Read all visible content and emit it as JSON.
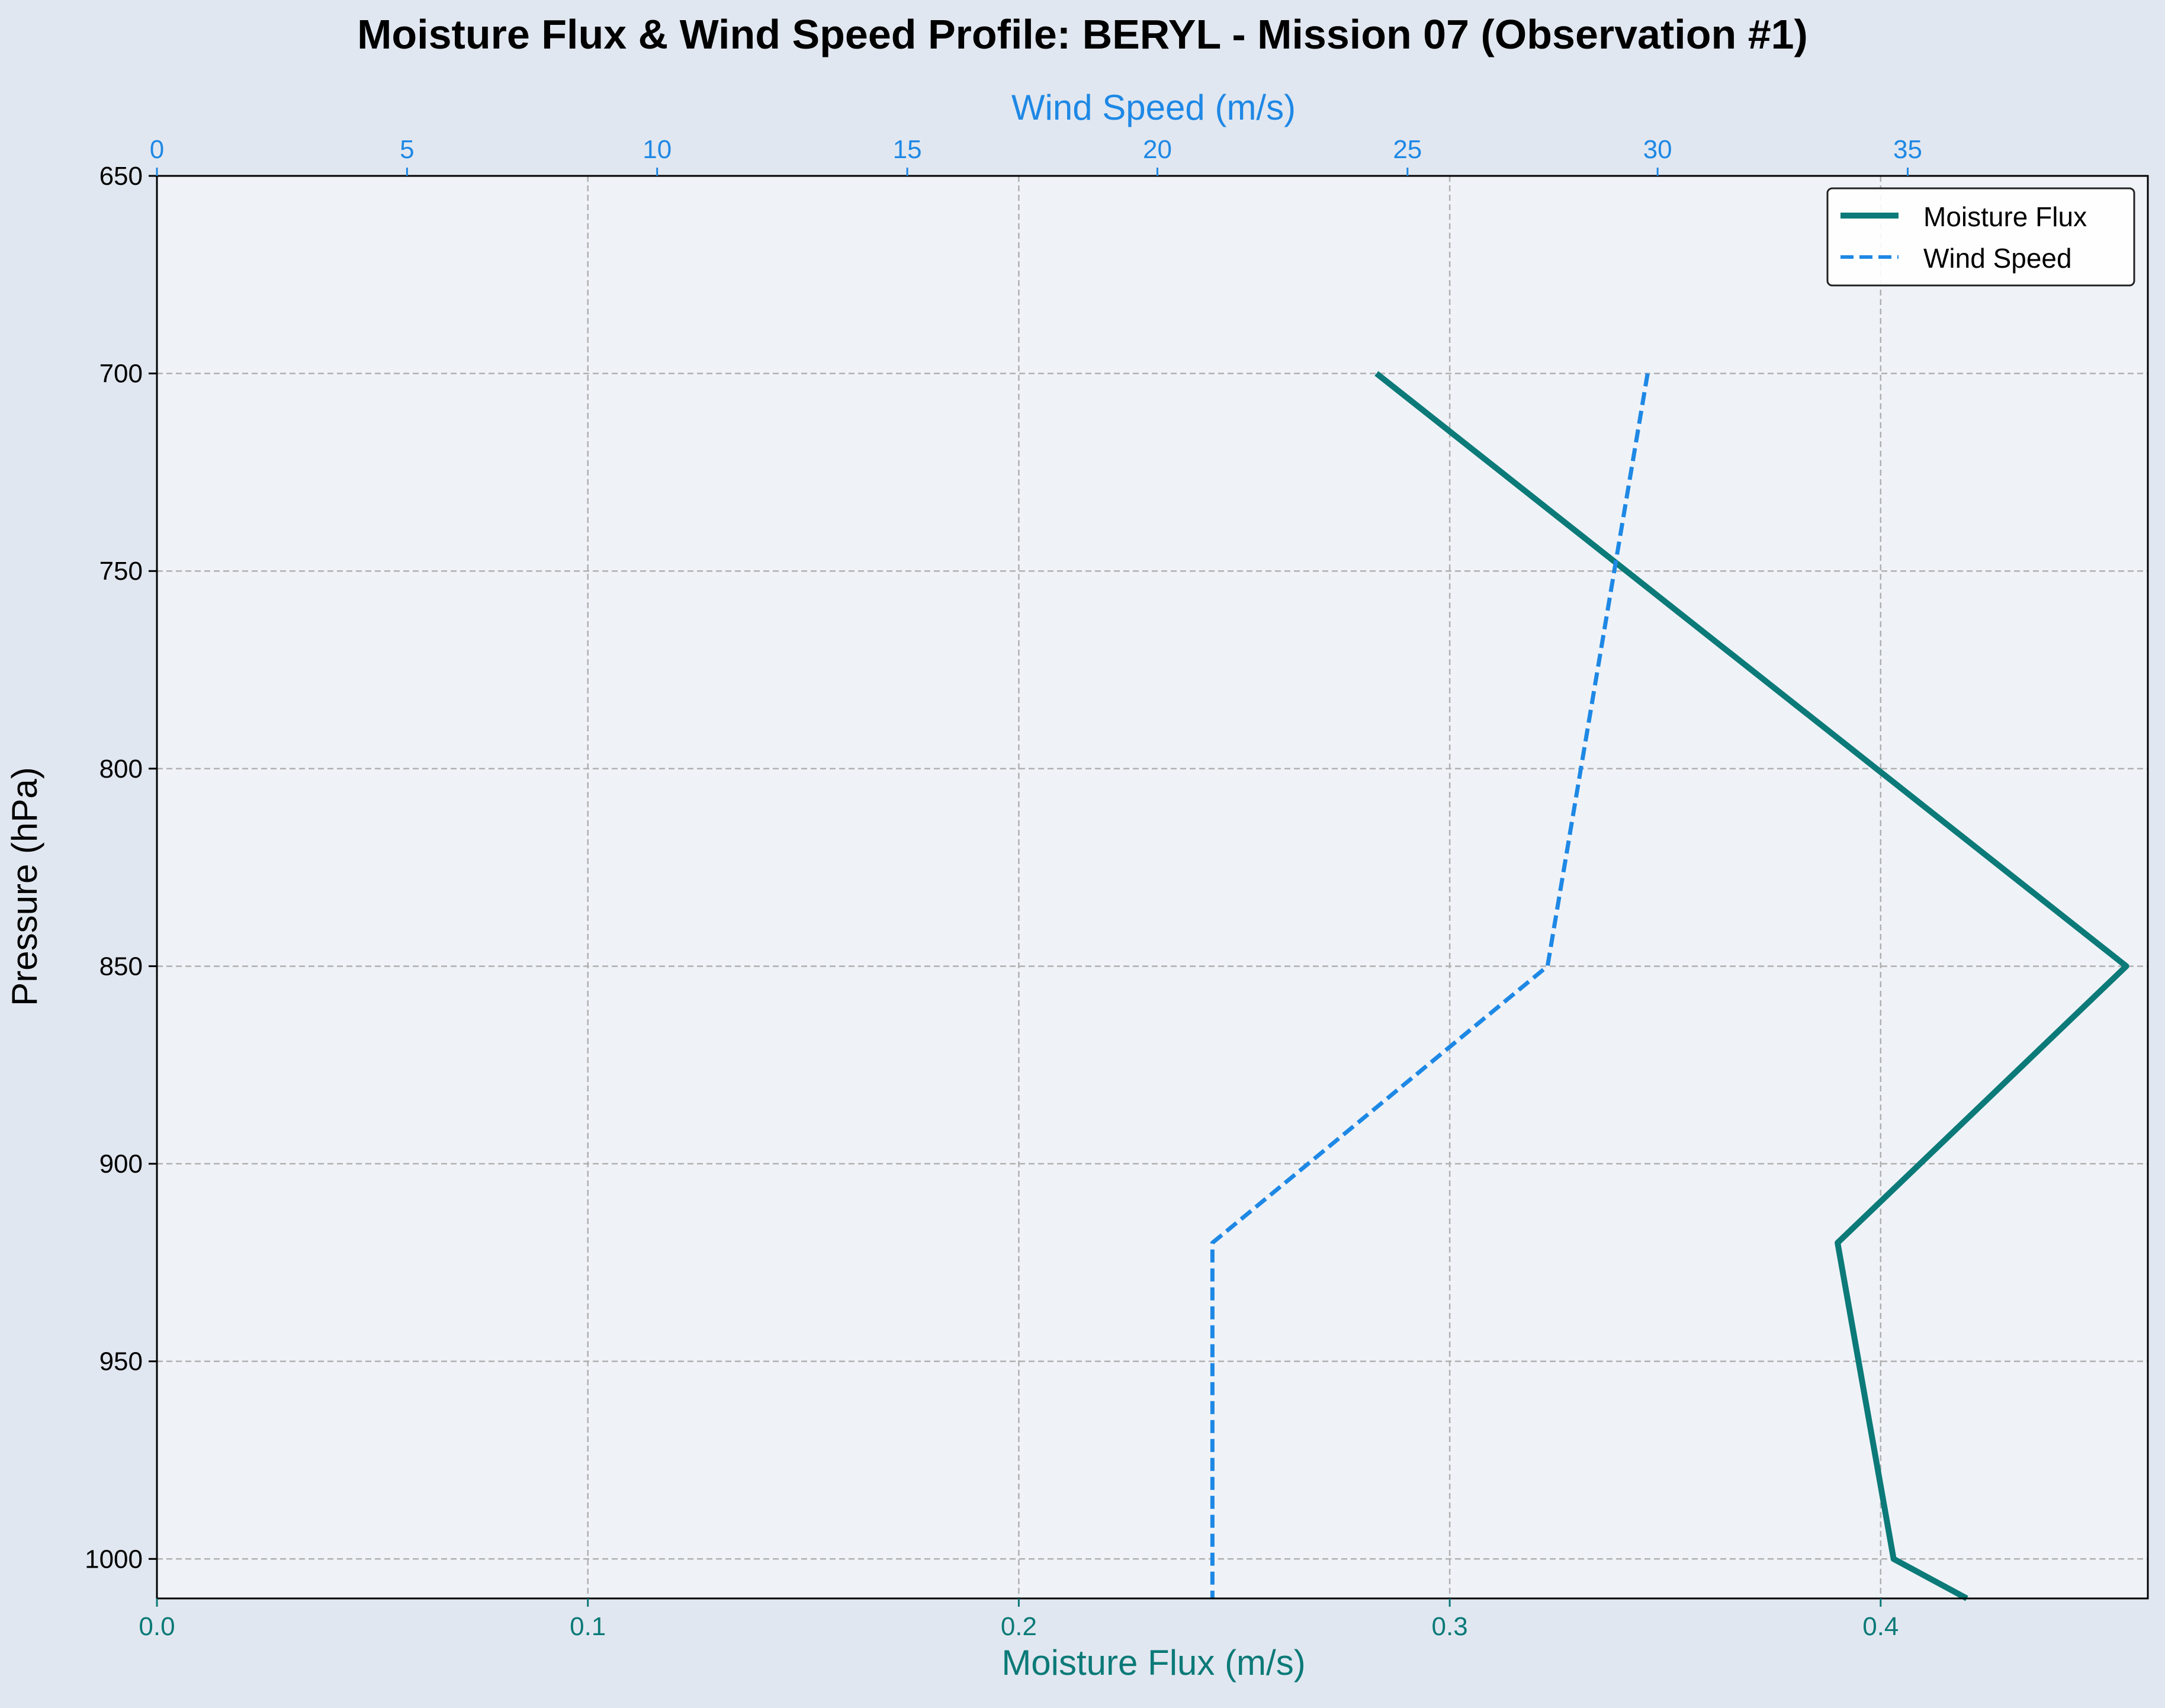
{
  "chart_data": {
    "type": "line",
    "title": "Moisture Flux & Wind Speed Profile: BERYL - Mission 07 (Observation #1)",
    "ylabel": "Pressure (hPa)",
    "ylim": [
      1010,
      650
    ],
    "y_inverted": true,
    "yticks": [
      650,
      700,
      750,
      800,
      850,
      900,
      950,
      1000
    ],
    "bottom_axis": {
      "label": "Moisture Flux (m/s)",
      "range": [
        0.0,
        0.462
      ],
      "ticks": [
        0.0,
        0.1,
        0.2,
        0.3,
        0.4
      ],
      "tick_labels": [
        "0.0",
        "0.1",
        "0.2",
        "0.3",
        "0.4"
      ],
      "color": "#0b7a78"
    },
    "top_axis": {
      "label": "Wind Speed (m/s)",
      "range": [
        0,
        39.8
      ],
      "ticks": [
        0,
        5,
        10,
        15,
        20,
        25,
        30,
        35
      ],
      "tick_labels": [
        "0",
        "5",
        "10",
        "15",
        "20",
        "25",
        "30",
        "35"
      ],
      "color": "#1e88e5"
    },
    "grid": true,
    "legend_position": "top-right",
    "series": [
      {
        "name": "Moisture Flux",
        "axis": "bottom",
        "color": "#0b7a78",
        "style": "solid",
        "points": [
          {
            "x": 0.283,
            "pressure": 700
          },
          {
            "x": 0.457,
            "pressure": 850
          },
          {
            "x": 0.39,
            "pressure": 920
          },
          {
            "x": 0.403,
            "pressure": 1000
          },
          {
            "x": 0.42,
            "pressure": 1010
          }
        ]
      },
      {
        "name": "Wind Speed",
        "axis": "top",
        "color": "#1e88e5",
        "style": "dashed",
        "points": [
          {
            "x": 29.8,
            "pressure": 700
          },
          {
            "x": 27.8,
            "pressure": 850
          },
          {
            "x": 21.1,
            "pressure": 920
          },
          {
            "x": 21.1,
            "pressure": 1010
          }
        ]
      }
    ]
  }
}
